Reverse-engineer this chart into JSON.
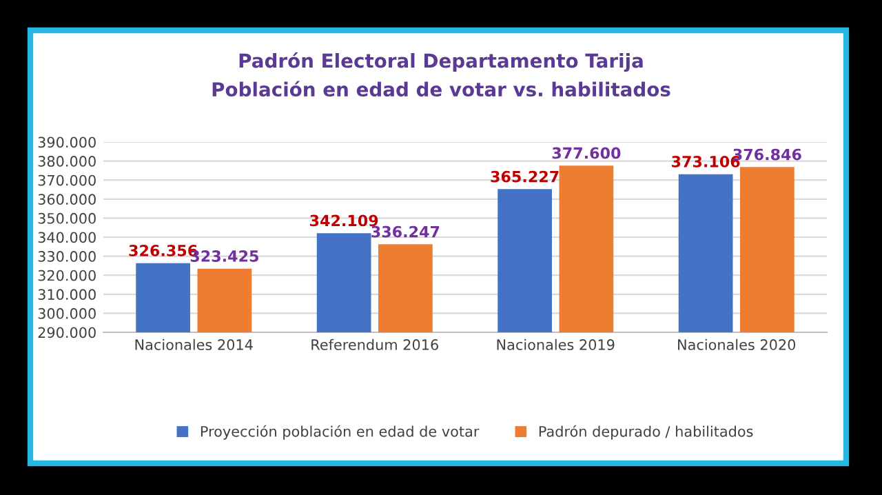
{
  "chart_data": {
    "type": "bar",
    "title": "Padrón Electoral Departamento Tarija",
    "subtitle": "Población en edad de votar vs. habilitados",
    "categories": [
      "Nacionales 2014",
      "Referendum 2016",
      "Nacionales 2019",
      "Nacionales 2020"
    ],
    "series": [
      {
        "name": "Proyección población en edad de votar",
        "color": "#4472c4",
        "values": [
          326356,
          342109,
          365227,
          373106
        ],
        "value_labels": [
          "326.356",
          "342.109",
          "365.227",
          "373.106"
        ]
      },
      {
        "name": "Padrón depurado / habilitados",
        "color": "#ed7d31",
        "values": [
          323425,
          336247,
          377600,
          376846
        ],
        "value_labels": [
          "323.425",
          "336.247",
          "377.600",
          "376.846"
        ]
      }
    ],
    "ylim": [
      290000,
      390000
    ],
    "yticks": [
      {
        "value": 290000,
        "label": "290.000"
      },
      {
        "value": 300000,
        "label": "300.000"
      },
      {
        "value": 310000,
        "label": "310.000"
      },
      {
        "value": 320000,
        "label": "320.000"
      },
      {
        "value": 330000,
        "label": "330.000"
      },
      {
        "value": 340000,
        "label": "340.000"
      },
      {
        "value": 350000,
        "label": "350.000"
      },
      {
        "value": 360000,
        "label": "360.000"
      },
      {
        "value": 370000,
        "label": "370.000"
      },
      {
        "value": 380000,
        "label": "380.000"
      },
      {
        "value": 390000,
        "label": "390.000"
      }
    ],
    "grid": "y",
    "legend": "bottom"
  }
}
